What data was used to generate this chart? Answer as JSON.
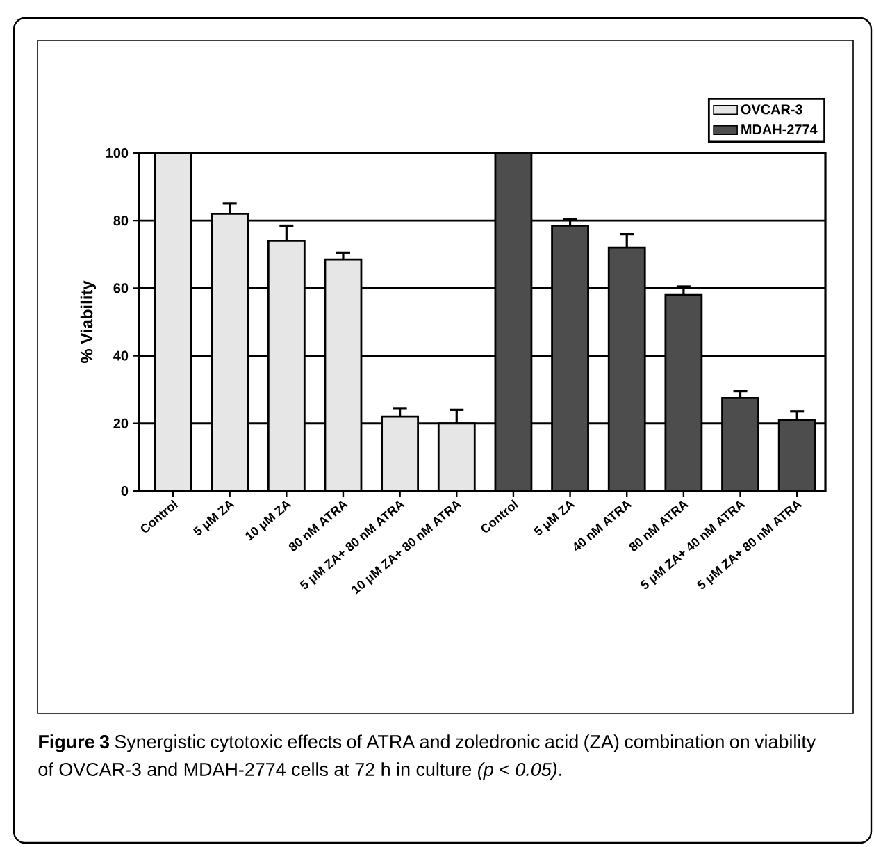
{
  "chart_data": {
    "type": "bar",
    "categories": [
      "Control",
      "5 μM ZA",
      "10 μM ZA",
      "80 nM ATRA",
      "5 μM ZA+ 80 nM ATRA",
      "10 μM ZA+ 80 nM ATRA",
      "Control",
      "5 μM ZA",
      "40 nM ATRA",
      "80 nM ATRA",
      "5 μM ZA+ 40 nM ATRA",
      "5 μM ZA+ 80 nM ATRA"
    ],
    "series": [
      {
        "name": "OVCAR-3",
        "color": "#e6e6e6",
        "values": [
          100,
          82,
          74,
          68.5,
          22,
          20,
          null,
          null,
          null,
          null,
          null,
          null
        ],
        "errors": [
          null,
          3,
          4.5,
          2,
          2.5,
          4,
          null,
          null,
          null,
          null,
          null,
          null
        ]
      },
      {
        "name": "MDAH-2774",
        "color": "#4d4d4d",
        "values": [
          null,
          null,
          null,
          null,
          null,
          null,
          100,
          78.5,
          72,
          58,
          27.5,
          21
        ],
        "errors": [
          null,
          null,
          null,
          null,
          null,
          null,
          null,
          2,
          4,
          2.5,
          2,
          2.5
        ]
      }
    ],
    "ylabel": "% Viability",
    "ylim": [
      0,
      100
    ],
    "yticks": [
      0,
      20,
      40,
      60,
      80,
      100
    ],
    "grid": "y",
    "legend": "top right",
    "annotations": [
      "**Figure 3** Synergistic cytotoxic effects of ATRA and zoledronic acid (ZA) combination on viability of OVCAR-3 and MDAH-2774 cells at 72 h in culture *(p < 0.05)*."
    ]
  }
}
